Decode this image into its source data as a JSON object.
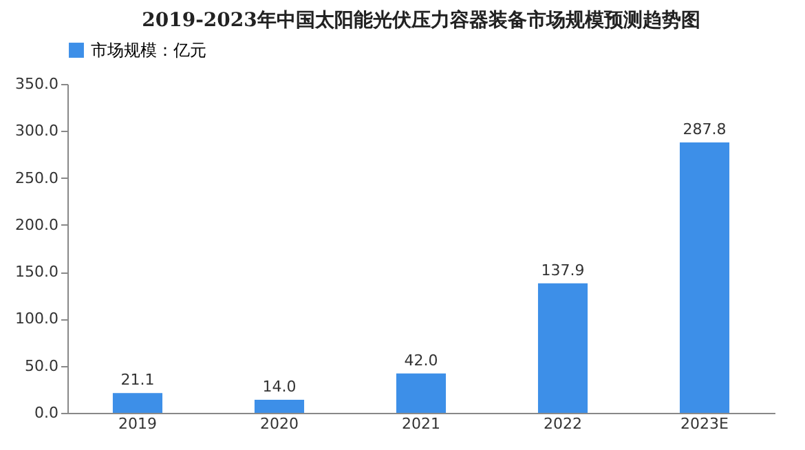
{
  "chart_data": {
    "type": "bar",
    "title": "2019-2023年中国太阳能光伏压力容器装备市场规模预测趋势图",
    "categories": [
      "2019",
      "2020",
      "2021",
      "2022",
      "2023E"
    ],
    "series": [
      {
        "name": "市场规模：亿元",
        "color": "#3d8fe8",
        "values": [
          21.1,
          14.0,
          42.0,
          137.9,
          287.8
        ],
        "value_labels": [
          "21.1",
          "14.0",
          "42.0",
          "137.9",
          "287.8"
        ]
      }
    ],
    "ylim": [
      0,
      350
    ],
    "yticks": [
      {
        "value": 0,
        "label": "0.0"
      },
      {
        "value": 50,
        "label": "50.0"
      },
      {
        "value": 100,
        "label": "100.0"
      },
      {
        "value": 150,
        "label": "150.0"
      },
      {
        "value": 200,
        "label": "200.0"
      },
      {
        "value": 250,
        "label": "250.0"
      },
      {
        "value": 300,
        "label": "300.0"
      },
      {
        "value": 350,
        "label": "350.0"
      }
    ],
    "legend": "top",
    "grid": false
  }
}
